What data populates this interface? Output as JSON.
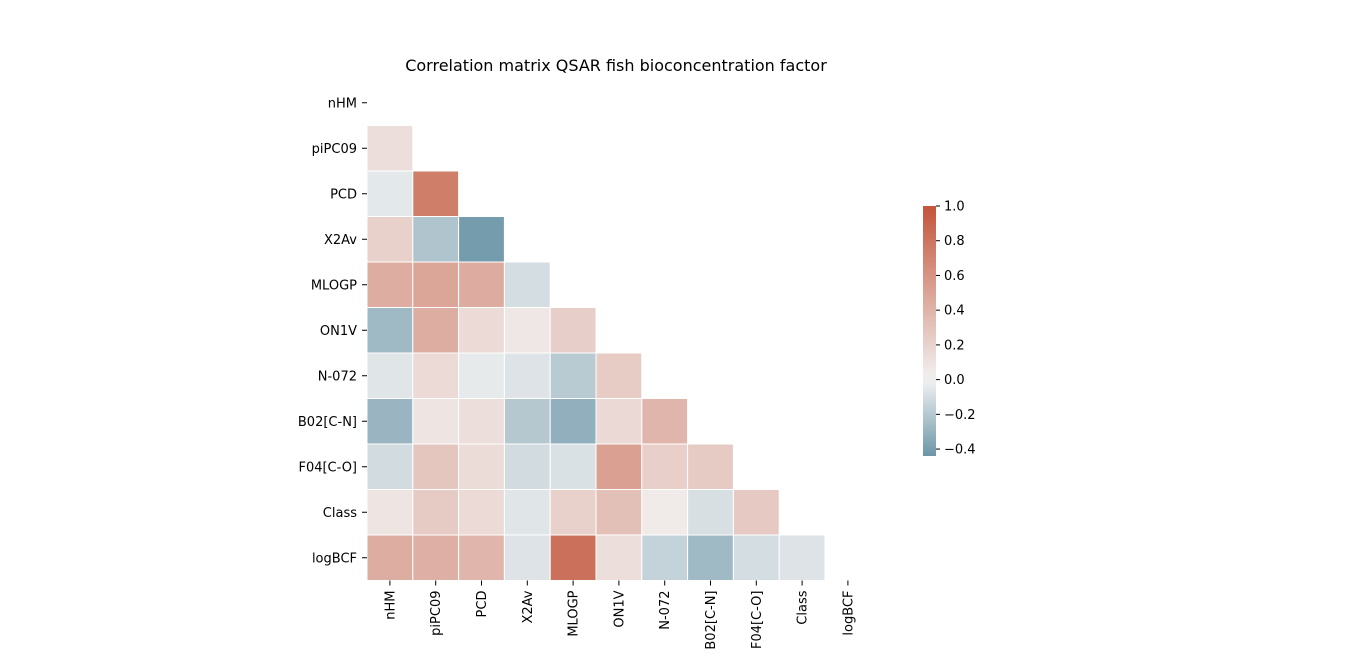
{
  "chart_data": {
    "type": "heatmap",
    "title": "Correlation matrix QSAR fish bioconcentration factor",
    "xlabel": "",
    "ylabel": "",
    "variables": [
      "nHM",
      "piPC09",
      "PCD",
      "X2Av",
      "MLOGP",
      "ON1V",
      "N-072",
      "B02[C-N]",
      "F04[C-O]",
      "Class",
      "logBCF"
    ],
    "mask": "upper-triangle-including-diagonal",
    "grid": false,
    "cell_borders": "white",
    "colormap": "diverging blue-white-red (centered at 0)",
    "color_low": "#6c96a8",
    "color_mid": "#f2f2f2",
    "color_high": "#c3553a",
    "vmin": -0.44,
    "vmax": 1.0,
    "center": 0.0,
    "colorbar": {
      "placement": "right",
      "ticks": [
        1.0,
        0.8,
        0.6,
        0.4,
        0.2,
        0.0,
        -0.2,
        -0.4
      ],
      "tick_labels": [
        "1.0",
        "0.8",
        "0.6",
        "0.4",
        "0.2",
        "0.0",
        "−0.2",
        "−0.4"
      ]
    },
    "rows": [
      {
        "name": "piPC09",
        "values": [
          0.13
        ]
      },
      {
        "name": "PCD",
        "values": [
          -0.05,
          0.74
        ]
      },
      {
        "name": "X2Av",
        "values": [
          0.21,
          -0.22,
          -0.41
        ]
      },
      {
        "name": "MLOGP",
        "values": [
          0.44,
          0.49,
          0.45,
          -0.1
        ]
      },
      {
        "name": "ON1V",
        "values": [
          -0.27,
          0.44,
          0.15,
          0.07,
          0.23
        ]
      },
      {
        "name": "N-072",
        "values": [
          -0.06,
          0.15,
          -0.04,
          -0.07,
          -0.19,
          0.24
        ]
      },
      {
        "name": "B02[C-N]",
        "values": [
          -0.29,
          0.08,
          0.13,
          -0.2,
          -0.32,
          0.16,
          0.38
        ]
      },
      {
        "name": "F04[C-O]",
        "values": [
          -0.11,
          0.28,
          0.14,
          -0.11,
          -0.08,
          0.52,
          0.22,
          0.25
        ]
      },
      {
        "name": "Class",
        "values": [
          0.08,
          0.25,
          0.15,
          -0.06,
          0.21,
          0.32,
          0.05,
          -0.09,
          0.26
        ]
      },
      {
        "name": "logBCF",
        "values": [
          0.44,
          0.42,
          0.38,
          -0.07,
          0.82,
          0.13,
          -0.15,
          -0.27,
          -0.1,
          -0.07
        ]
      }
    ]
  }
}
